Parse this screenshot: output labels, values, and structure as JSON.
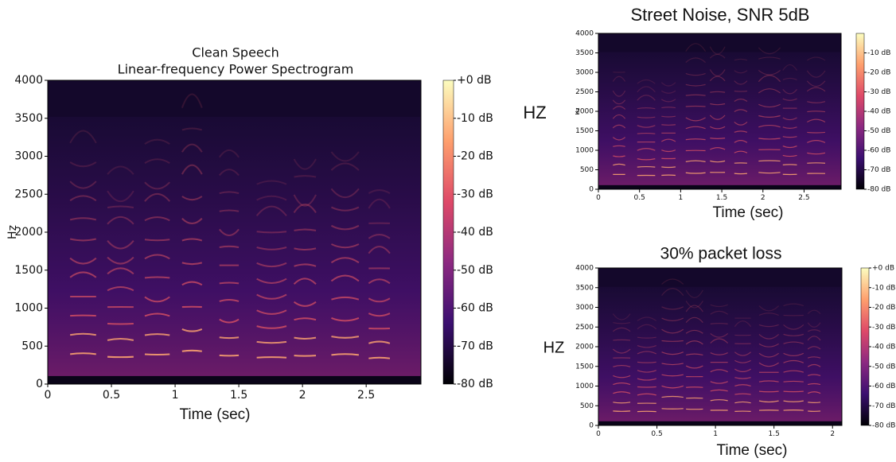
{
  "chart_data": [
    {
      "type": "spectrogram",
      "title": "Clean Speech",
      "subtitle": "Linear-frequency Power Spectrogram",
      "xlabel": "Time (sec)",
      "ylabel": "Hz",
      "colormap": "magma",
      "xlim": [
        0,
        2.93
      ],
      "xticks": [
        0,
        0.5,
        1,
        1.5,
        2,
        2.5
      ],
      "ylim": [
        0,
        4000
      ],
      "yticks": [
        0,
        500,
        1000,
        1500,
        2000,
        2500,
        3000,
        3500,
        4000
      ],
      "clim": [
        -80,
        0
      ],
      "cticks": [
        {
          "value": 0,
          "label": "+0 dB"
        },
        {
          "value": -10,
          "label": "-10 dB"
        },
        {
          "value": -20,
          "label": "-20 dB"
        },
        {
          "value": -30,
          "label": "-30 dB"
        },
        {
          "value": -40,
          "label": "-40 dB"
        },
        {
          "value": -50,
          "label": "-50 dB"
        },
        {
          "value": -60,
          "label": "-60 dB"
        },
        {
          "value": -70,
          "label": "-70 dB"
        },
        {
          "value": -80,
          "label": "-80 dB"
        }
      ]
    },
    {
      "type": "spectrogram",
      "title": "Street Noise, SNR 5dB",
      "xlabel": "Time (sec)",
      "ylabel": "Hz",
      "annotation": "HZ",
      "colormap": "magma",
      "xlim": [
        0,
        2.95
      ],
      "xticks": [
        0,
        0.5,
        1,
        1.5,
        2,
        2.5
      ],
      "ylim": [
        0,
        4000
      ],
      "yticks": [
        0,
        500,
        1000,
        1500,
        2000,
        2500,
        3000,
        3500,
        4000
      ],
      "clim": [
        -80,
        0
      ],
      "cticks": [
        {
          "value": -10,
          "label": "-10 dB"
        },
        {
          "value": -20,
          "label": "-20 dB"
        },
        {
          "value": -30,
          "label": "-30 dB"
        },
        {
          "value": -40,
          "label": "-40 dB"
        },
        {
          "value": -50,
          "label": "-50 dB"
        },
        {
          "value": -60,
          "label": "-60 dB"
        },
        {
          "value": -70,
          "label": "-70 dB"
        },
        {
          "value": -80,
          "label": "-80 dB"
        }
      ]
    },
    {
      "type": "spectrogram",
      "title": "30% packet loss",
      "xlabel": "Time (sec)",
      "annotation": "HZ",
      "colormap": "magma",
      "xlim": [
        0,
        2.08
      ],
      "xticks": [
        0,
        0.5,
        1,
        1.5,
        2
      ],
      "ylim": [
        0,
        4000
      ],
      "yticks": [
        0,
        500,
        1000,
        1500,
        2000,
        2500,
        3000,
        3500,
        4000
      ],
      "clim": [
        -80,
        0
      ],
      "cticks": [
        {
          "value": 0,
          "label": "+0 dB"
        },
        {
          "value": -10,
          "label": "-10 dB"
        },
        {
          "value": -20,
          "label": "-20 dB"
        },
        {
          "value": -30,
          "label": "-30 dB"
        },
        {
          "value": -40,
          "label": "-40 dB"
        },
        {
          "value": -50,
          "label": "-50 dB"
        },
        {
          "value": -60,
          "label": "-60 dB"
        },
        {
          "value": -70,
          "label": "-70 dB"
        },
        {
          "value": -80,
          "label": "-80 dB"
        }
      ]
    }
  ]
}
